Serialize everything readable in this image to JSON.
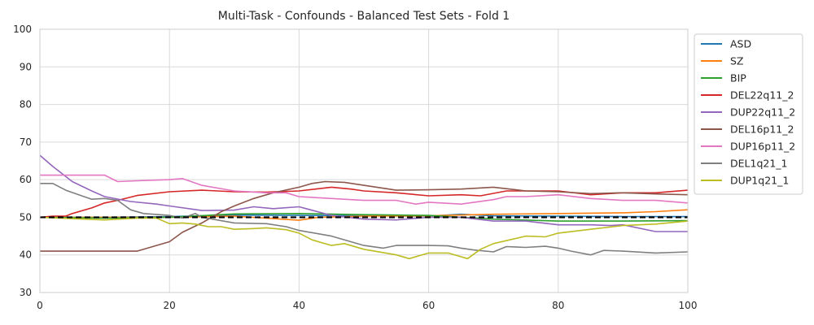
{
  "chart_data": {
    "type": "line",
    "title": "Multi-Task - Confounds - Balanced Test Sets - Fold 1",
    "xlabel": "",
    "ylabel": "",
    "xlim": [
      0,
      100
    ],
    "ylim": [
      30,
      100
    ],
    "xticks": [
      0,
      20,
      40,
      60,
      80,
      100
    ],
    "yticks": [
      30,
      40,
      50,
      60,
      70,
      80,
      90,
      100
    ],
    "grid": true,
    "legend_position": "upper right, outside plot",
    "baseline": {
      "y": 50,
      "color": "#000000",
      "style": "dashed"
    },
    "series": [
      {
        "name": "ASD",
        "color": "#1f77b4",
        "points": [
          [
            0,
            50
          ],
          [
            10,
            50
          ],
          [
            20,
            50.2
          ],
          [
            30,
            50.6
          ],
          [
            40,
            50.5
          ],
          [
            50,
            50.4
          ],
          [
            60,
            50.3
          ],
          [
            65,
            50.8
          ],
          [
            70,
            50.4
          ],
          [
            80,
            50.3
          ],
          [
            90,
            50.2
          ],
          [
            100,
            50.2
          ]
        ]
      },
      {
        "name": "SZ",
        "color": "#ff7f0e",
        "points": [
          [
            0,
            50
          ],
          [
            10,
            50
          ],
          [
            20,
            50
          ],
          [
            30,
            50.3
          ],
          [
            40,
            49.2
          ],
          [
            43,
            50
          ],
          [
            50,
            50.3
          ],
          [
            60,
            50.4
          ],
          [
            70,
            50.8
          ],
          [
            80,
            51
          ],
          [
            90,
            51.2
          ],
          [
            95,
            51.5
          ],
          [
            100,
            52
          ]
        ]
      },
      {
        "name": "BIP",
        "color": "#2ca02c",
        "points": [
          [
            0,
            50
          ],
          [
            10,
            49.8
          ],
          [
            20,
            50
          ],
          [
            30,
            50.9
          ],
          [
            40,
            51
          ],
          [
            50,
            50.7
          ],
          [
            60,
            50.5
          ],
          [
            65,
            50
          ],
          [
            70,
            49.5
          ],
          [
            80,
            49
          ],
          [
            90,
            49
          ],
          [
            100,
            49.1
          ]
        ]
      },
      {
        "name": "DEL22q11_2",
        "color": "#d62728",
        "points": [
          [
            0,
            50
          ],
          [
            2,
            50.3
          ],
          [
            4,
            50.3
          ],
          [
            5,
            51
          ],
          [
            8,
            52.5
          ],
          [
            10,
            53.8
          ],
          [
            12,
            54.5
          ],
          [
            15,
            55.8
          ],
          [
            20,
            56.8
          ],
          [
            25,
            57.2
          ],
          [
            30,
            56.8
          ],
          [
            35,
            56.7
          ],
          [
            40,
            57
          ],
          [
            45,
            58
          ],
          [
            48,
            57.5
          ],
          [
            50,
            57
          ],
          [
            55,
            56.5
          ],
          [
            60,
            55.7
          ],
          [
            65,
            56
          ],
          [
            68,
            55.7
          ],
          [
            72,
            57
          ],
          [
            75,
            57
          ],
          [
            80,
            57
          ],
          [
            85,
            56
          ],
          [
            90,
            56.5
          ],
          [
            95,
            56.5
          ],
          [
            100,
            57.2
          ]
        ]
      },
      {
        "name": "DUP22q11_2",
        "color": "#9467bd",
        "points": [
          [
            0,
            66.5
          ],
          [
            2,
            63.5
          ],
          [
            5,
            59.5
          ],
          [
            8,
            57
          ],
          [
            10,
            55.5
          ],
          [
            14,
            54.2
          ],
          [
            18,
            53.5
          ],
          [
            20,
            53
          ],
          [
            25,
            51.8
          ],
          [
            30,
            51.9
          ],
          [
            33,
            52.8
          ],
          [
            36,
            52.3
          ],
          [
            40,
            52.8
          ],
          [
            45,
            50.5
          ],
          [
            50,
            49.5
          ],
          [
            55,
            49.3
          ],
          [
            60,
            50
          ],
          [
            65,
            50
          ],
          [
            70,
            49
          ],
          [
            75,
            49
          ],
          [
            80,
            48
          ],
          [
            85,
            48
          ],
          [
            88,
            47.8
          ],
          [
            90,
            48
          ],
          [
            95,
            46.2
          ],
          [
            100,
            46.2
          ]
        ]
      },
      {
        "name": "DEL16p11_2",
        "color": "#8c564b",
        "points": [
          [
            0,
            41
          ],
          [
            5,
            41
          ],
          [
            10,
            41
          ],
          [
            15,
            41
          ],
          [
            18,
            42.5
          ],
          [
            20,
            43.5
          ],
          [
            22,
            46
          ],
          [
            25,
            48.5
          ],
          [
            28,
            51.5
          ],
          [
            30,
            53
          ],
          [
            33,
            55
          ],
          [
            36,
            56.5
          ],
          [
            40,
            58
          ],
          [
            42,
            59
          ],
          [
            44,
            59.5
          ],
          [
            47,
            59.3
          ],
          [
            50,
            58.5
          ],
          [
            55,
            57.2
          ],
          [
            60,
            57.3
          ],
          [
            65,
            57.5
          ],
          [
            70,
            58
          ],
          [
            75,
            57
          ],
          [
            80,
            56.8
          ],
          [
            85,
            56.3
          ],
          [
            90,
            56.5
          ],
          [
            95,
            56.2
          ],
          [
            100,
            56
          ]
        ]
      },
      {
        "name": "DUP16p11_2",
        "color": "#e377c2",
        "points": [
          [
            0,
            61.2
          ],
          [
            5,
            61.2
          ],
          [
            10,
            61.2
          ],
          [
            12,
            59.5
          ],
          [
            15,
            59.7
          ],
          [
            20,
            60
          ],
          [
            22,
            60.3
          ],
          [
            25,
            58.5
          ],
          [
            30,
            57
          ],
          [
            35,
            56.5
          ],
          [
            38,
            56.5
          ],
          [
            40,
            55.5
          ],
          [
            45,
            55
          ],
          [
            50,
            54.5
          ],
          [
            55,
            54.5
          ],
          [
            58,
            53.5
          ],
          [
            60,
            54
          ],
          [
            65,
            53.5
          ],
          [
            70,
            54.7
          ],
          [
            72,
            55.5
          ],
          [
            75,
            55.5
          ],
          [
            80,
            56
          ],
          [
            85,
            55
          ],
          [
            90,
            54.5
          ],
          [
            95,
            54.5
          ],
          [
            100,
            53.8
          ]
        ]
      },
      {
        "name": "DEL1q21_1",
        "color": "#7f7f7f",
        "points": [
          [
            0,
            59
          ],
          [
            2,
            59
          ],
          [
            4,
            57.2
          ],
          [
            6,
            56
          ],
          [
            8,
            54.8
          ],
          [
            10,
            55
          ],
          [
            12,
            54.5
          ],
          [
            14,
            52
          ],
          [
            16,
            51
          ],
          [
            20,
            50.5
          ],
          [
            22,
            49.8
          ],
          [
            24,
            51
          ],
          [
            25,
            50
          ],
          [
            30,
            48.5
          ],
          [
            35,
            48.3
          ],
          [
            38,
            47.5
          ],
          [
            40,
            46.5
          ],
          [
            45,
            45
          ],
          [
            50,
            42.5
          ],
          [
            53,
            41.8
          ],
          [
            55,
            42.5
          ],
          [
            60,
            42.5
          ],
          [
            63,
            42.4
          ],
          [
            65,
            41.8
          ],
          [
            67,
            41.3
          ],
          [
            70,
            40.8
          ],
          [
            72,
            42.2
          ],
          [
            75,
            42
          ],
          [
            78,
            42.3
          ],
          [
            80,
            41.8
          ],
          [
            82,
            41
          ],
          [
            85,
            40
          ],
          [
            87,
            41.2
          ],
          [
            90,
            41
          ],
          [
            95,
            40.5
          ],
          [
            100,
            40.8
          ]
        ]
      },
      {
        "name": "DUP1q21_1",
        "color": "#bcbd22",
        "points": [
          [
            0,
            50
          ],
          [
            10,
            49.3
          ],
          [
            15,
            49.8
          ],
          [
            18,
            49.8
          ],
          [
            20,
            48.3
          ],
          [
            22,
            48.5
          ],
          [
            24,
            48.2
          ],
          [
            26,
            47.5
          ],
          [
            28,
            47.5
          ],
          [
            30,
            46.8
          ],
          [
            33,
            47
          ],
          [
            35,
            47.2
          ],
          [
            38,
            46.7
          ],
          [
            40,
            45.8
          ],
          [
            42,
            44
          ],
          [
            45,
            42.5
          ],
          [
            47,
            43
          ],
          [
            50,
            41.5
          ],
          [
            55,
            40
          ],
          [
            57,
            39
          ],
          [
            60,
            40.5
          ],
          [
            63,
            40.5
          ],
          [
            66,
            39
          ],
          [
            68,
            41.5
          ],
          [
            70,
            43
          ],
          [
            75,
            45
          ],
          [
            78,
            44.8
          ],
          [
            80,
            45.8
          ],
          [
            85,
            46.8
          ],
          [
            90,
            47.8
          ],
          [
            95,
            48.2
          ],
          [
            100,
            49
          ]
        ]
      }
    ]
  }
}
